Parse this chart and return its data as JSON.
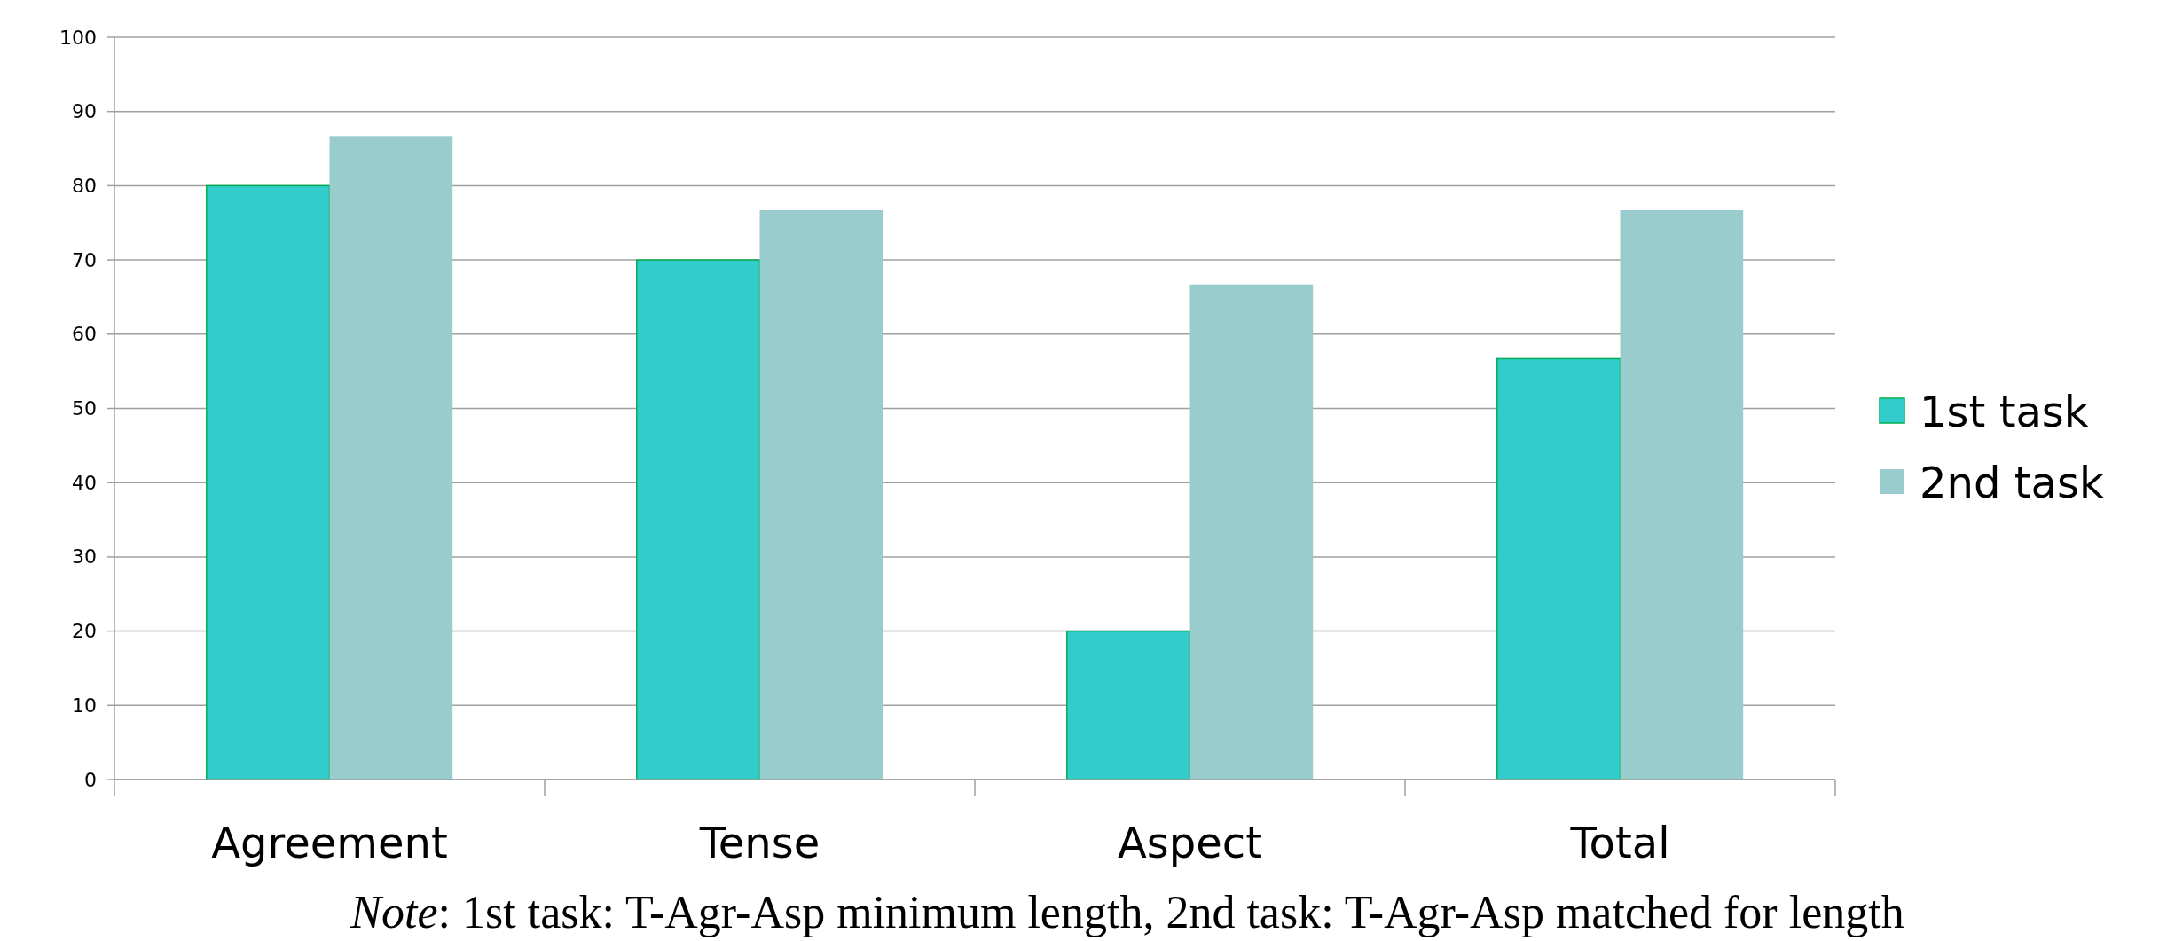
{
  "chart_data": {
    "type": "bar",
    "categories": [
      "Agreement",
      "Tense",
      "Aspect",
      "Total"
    ],
    "series": [
      {
        "name": "1st task",
        "color": "#33cccc",
        "values": [
          80,
          70,
          20,
          56.7
        ]
      },
      {
        "name": "2nd task",
        "color": "#99cccc",
        "values": [
          86.7,
          76.7,
          66.7,
          76.7
        ]
      }
    ],
    "ylim": [
      0,
      100
    ],
    "yticks": [
      0,
      10,
      20,
      30,
      40,
      50,
      60,
      70,
      80,
      90,
      100
    ],
    "grid": "y",
    "legend": "right",
    "annotations": [
      "Note: 1st task: T-Agr-Asp minimum length, 2nd task: T-Agr-Asp matched for length"
    ]
  }
}
